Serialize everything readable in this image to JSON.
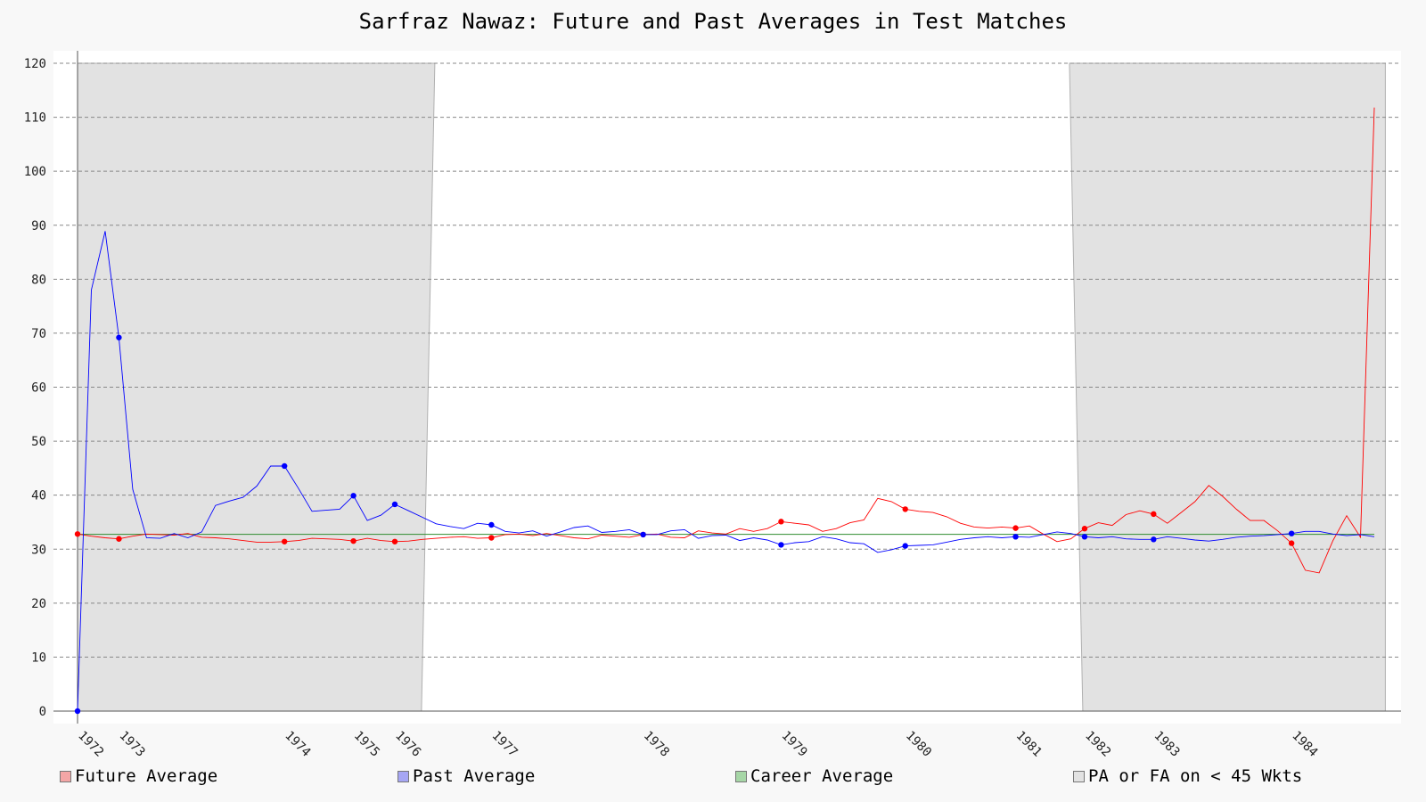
{
  "chart_data": {
    "type": "line",
    "title": "Sarfraz Nawaz: Future and Past Averages in Test Matches",
    "xlabel": "",
    "ylabel": "",
    "ylim": [
      0,
      120
    ],
    "yticks": [
      0,
      10,
      20,
      30,
      40,
      50,
      60,
      70,
      80,
      90,
      100,
      110,
      120
    ],
    "grid": true,
    "legend_position": "bottom",
    "career_average": 32.75,
    "x_tick_labels": [
      {
        "label": "1972",
        "index": 0
      },
      {
        "label": "1973",
        "index": 3
      },
      {
        "label": "1974",
        "index": 15
      },
      {
        "label": "1975",
        "index": 20
      },
      {
        "label": "1976",
        "index": 23
      },
      {
        "label": "1977",
        "index": 30
      },
      {
        "label": "1978",
        "index": 41
      },
      {
        "label": "1979",
        "index": 51
      },
      {
        "label": "1980",
        "index": 60
      },
      {
        "label": "1981",
        "index": 68
      },
      {
        "label": "1982",
        "index": 73
      },
      {
        "label": "1983",
        "index": 78
      },
      {
        "label": "1984",
        "index": 88
      }
    ],
    "shaded_regions": [
      {
        "start": 0,
        "end": 25.9
      },
      {
        "start": 71.9,
        "end": 94.8
      }
    ],
    "series": [
      {
        "name": "Future Average",
        "color": "#ff0000",
        "values": [
          32.8,
          32.4,
          32.1,
          31.9,
          32.4,
          32.8,
          32.7,
          32.6,
          32.9,
          32.2,
          32.1,
          31.9,
          31.6,
          31.3,
          31.3,
          31.4,
          31.6,
          32.0,
          31.9,
          31.8,
          31.5,
          32.0,
          31.6,
          31.4,
          31.5,
          31.8,
          32.0,
          32.2,
          32.3,
          32.0,
          32.1,
          32.7,
          32.8,
          32.5,
          32.9,
          32.5,
          32.1,
          31.9,
          32.6,
          32.4,
          32.2,
          32.7,
          32.8,
          32.2,
          32.1,
          33.4,
          33.0,
          32.8,
          33.8,
          33.3,
          33.8,
          35.1,
          34.8,
          34.5,
          33.3,
          33.8,
          34.9,
          35.4,
          39.4,
          38.8,
          37.4,
          37.0,
          36.8,
          36.0,
          34.8,
          34.1,
          33.9,
          34.1,
          33.9,
          34.3,
          32.8,
          31.4,
          31.9,
          33.8,
          34.9,
          34.4,
          36.4,
          37.1,
          36.5,
          34.8,
          36.8,
          38.8,
          41.8,
          39.8,
          37.4,
          35.3,
          35.3,
          33.4,
          31.1,
          26.1,
          25.6,
          31.6,
          36.2,
          32.2,
          111.8
        ]
      },
      {
        "name": "Past Average",
        "color": "#0000ff",
        "values": [
          0.0,
          78.0,
          88.9,
          69.2,
          41.1,
          32.1,
          32.0,
          32.9,
          32.1,
          33.2,
          38.1,
          38.9,
          39.6,
          41.7,
          45.4,
          45.4,
          41.3,
          37.0,
          37.2,
          37.4,
          39.9,
          35.3,
          36.3,
          38.3,
          37.1,
          35.9,
          34.7,
          34.2,
          33.8,
          34.8,
          34.5,
          33.3,
          33.0,
          33.4,
          32.4,
          33.2,
          34.0,
          34.3,
          33.1,
          33.3,
          33.6,
          32.7,
          32.7,
          33.4,
          33.6,
          32.0,
          32.5,
          32.6,
          31.6,
          32.1,
          31.7,
          30.8,
          31.2,
          31.4,
          32.3,
          31.9,
          31.2,
          31.0,
          29.4,
          29.9,
          30.6,
          30.7,
          30.8,
          31.3,
          31.8,
          32.1,
          32.3,
          32.1,
          32.3,
          32.2,
          32.7,
          33.2,
          32.9,
          32.3,
          32.1,
          32.3,
          31.9,
          31.8,
          31.8,
          32.3,
          32.0,
          31.7,
          31.5,
          31.8,
          32.2,
          32.4,
          32.5,
          32.7,
          32.9,
          33.3,
          33.3,
          32.8,
          32.5,
          32.7,
          32.3
        ]
      }
    ],
    "legend": [
      {
        "label": "Future Average",
        "fill": "#f4a6a6"
      },
      {
        "label": "Past Average",
        "fill": "#a6a6f4"
      },
      {
        "label": "Career Average",
        "fill": "#a6d6a6"
      },
      {
        "label": "PA or FA on < 45 Wkts",
        "fill": "#e2e2e2"
      }
    ]
  }
}
